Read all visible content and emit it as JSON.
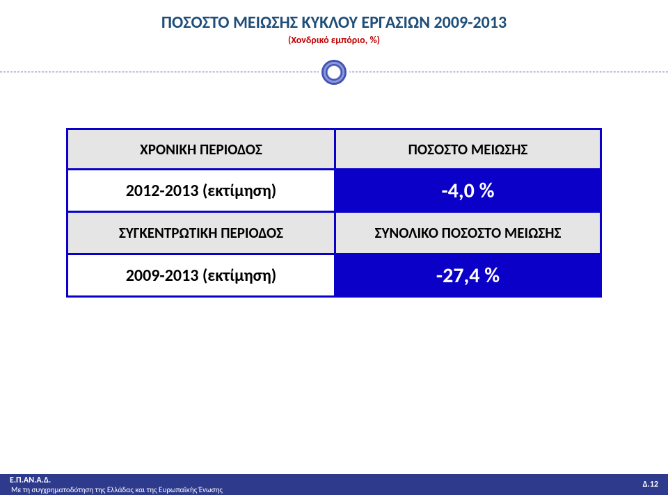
{
  "colors": {
    "title": "#1f4e79",
    "subtitle": "#c00000",
    "divider": "#3f52b7",
    "table_border": "#0a00c8",
    "hdr_bg": "#e5e5e5",
    "hdr_text": "#000000",
    "val_right_bg": "#0a00c8",
    "val_right_text": "#ffffff",
    "val_left_text": "#000000",
    "footer_bg": "#2e3a8c",
    "footer_text": "#ffffff",
    "page_bg": "#ffffff"
  },
  "title": {
    "main": "ΠΟΣΟΣΤΟ ΜΕΙΩΣΗΣ ΚΥΚΛΟΥ ΕΡΓΑΣΙΩΝ 2009-2013",
    "sub": "(Χονδρικό εμπόριο, %)"
  },
  "table": {
    "r1": {
      "left": "ΧΡΟΝΙΚΗ ΠΕΡΙΟΔΟΣ",
      "right": "ΠΟΣΟΣΤΟ ΜΕΙΩΣΗΣ"
    },
    "r2": {
      "left": "2012-2013 (εκτίμηση)",
      "right": "-4,0 %"
    },
    "r3": {
      "left": "ΣΥΓΚΕΝΤΡΩΤΙΚΗ ΠΕΡΙΟΔΟΣ",
      "right": "ΣΥΝΟΛΙΚΟ ΠΟΣΟΣΤΟ ΜΕΙΩΣΗΣ"
    },
    "r4": {
      "left": "2009-2013 (εκτίμηση)",
      "right": "-27,4 %"
    }
  },
  "footer": {
    "l1": "Ε.Π.ΑΝ.Α.Δ.",
    "l2": "Με τη συγχρηματοδότηση της Ελλάδας και της Ευρωπαϊκής Ένωσης",
    "r": "Δ.12"
  }
}
